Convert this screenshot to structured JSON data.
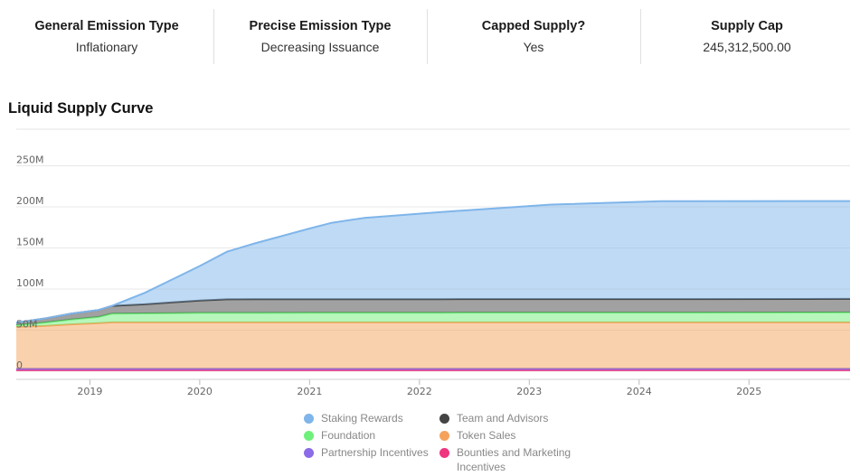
{
  "stats": [
    {
      "label": "General Emission Type",
      "value": "Inflationary"
    },
    {
      "label": "Precise Emission Type",
      "value": "Decreasing Issuance"
    },
    {
      "label": "Capped Supply?",
      "value": "Yes"
    },
    {
      "label": "Supply Cap",
      "value": "245,312,500.00"
    }
  ],
  "chart": {
    "title": "Liquid Supply Curve"
  },
  "chart_data": {
    "type": "area",
    "stacked": true,
    "xlim": [
      2018.33,
      2025.92
    ],
    "ylim": [
      -10,
      250
    ],
    "x_ticks": [
      {
        "value": 2019,
        "label": "2019"
      },
      {
        "value": 2020,
        "label": "2020"
      },
      {
        "value": 2021,
        "label": "2021"
      },
      {
        "value": 2022,
        "label": "2022"
      },
      {
        "value": 2023,
        "label": "2023"
      },
      {
        "value": 2024,
        "label": "2024"
      },
      {
        "value": 2025,
        "label": "2025"
      }
    ],
    "y_ticks": [
      {
        "value": 0,
        "label": "0"
      },
      {
        "value": 50,
        "label": "50M"
      },
      {
        "value": 100,
        "label": "100M"
      },
      {
        "value": 150,
        "label": "150M"
      },
      {
        "value": 200,
        "label": "200M"
      },
      {
        "value": 250,
        "label": "250M"
      }
    ],
    "grid": true,
    "legend_position": "bottom",
    "series": [
      {
        "name": "Bounties and Marketing Incentives",
        "color": "#f0357f",
        "points": [
          [
            2018.33,
            1.5
          ],
          [
            2025.92,
            1.5
          ]
        ]
      },
      {
        "name": "Partnership Incentives",
        "color": "#8b6be8",
        "points": [
          [
            2018.33,
            1.5
          ],
          [
            2025.92,
            1.5
          ]
        ]
      },
      {
        "name": "Token Sales",
        "color": "#f5a35c",
        "points": [
          [
            2018.33,
            51
          ],
          [
            2018.58,
            52
          ],
          [
            2018.83,
            54
          ],
          [
            2019.08,
            55.5
          ],
          [
            2019.2,
            56.5
          ],
          [
            2025.92,
            56.5
          ]
        ]
      },
      {
        "name": "Foundation",
        "color": "#6ff07a",
        "points": [
          [
            2018.33,
            2
          ],
          [
            2018.58,
            4
          ],
          [
            2018.83,
            6
          ],
          [
            2019.08,
            7.5
          ],
          [
            2019.2,
            10.5
          ],
          [
            2020.0,
            11.5
          ],
          [
            2025.92,
            12
          ]
        ]
      },
      {
        "name": "Team and Advisors",
        "color": "#444444",
        "points": [
          [
            2018.33,
            3
          ],
          [
            2018.58,
            5
          ],
          [
            2018.83,
            7
          ],
          [
            2019.08,
            8.5
          ],
          [
            2019.2,
            9.5
          ],
          [
            2019.5,
            11
          ],
          [
            2019.75,
            13
          ],
          [
            2020.0,
            15
          ],
          [
            2020.25,
            16.5
          ],
          [
            2025.92,
            16.5
          ]
        ]
      },
      {
        "name": "Staking Rewards",
        "color": "#7fb5ea",
        "points": [
          [
            2018.33,
            0
          ],
          [
            2019.2,
            0
          ],
          [
            2019.5,
            14
          ],
          [
            2019.75,
            28
          ],
          [
            2020.0,
            42
          ],
          [
            2020.25,
            58
          ],
          [
            2020.5,
            68
          ],
          [
            2021.0,
            86
          ],
          [
            2021.2,
            93
          ],
          [
            2021.5,
            99
          ],
          [
            2022.2,
            106
          ],
          [
            2023.2,
            115
          ],
          [
            2024.2,
            119
          ],
          [
            2025.92,
            119
          ]
        ]
      }
    ]
  }
}
